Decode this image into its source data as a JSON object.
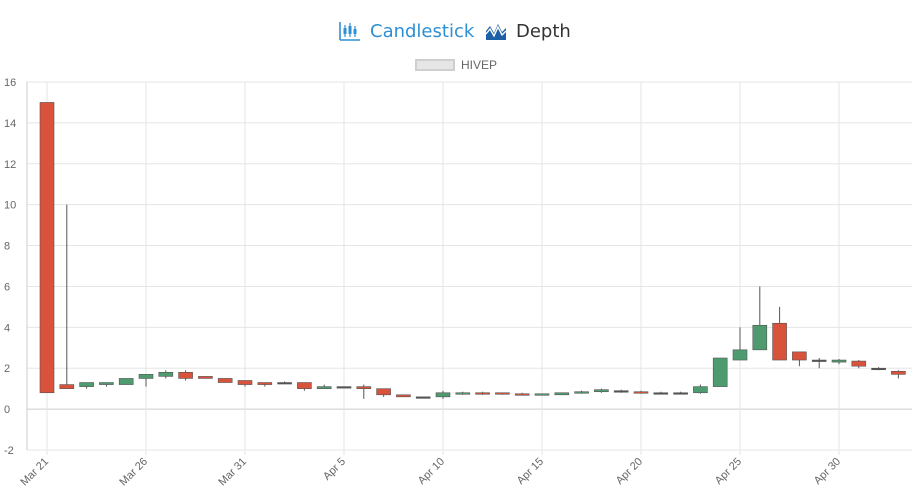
{
  "tabs": [
    {
      "label": "Candlestick",
      "icon": "candlestick-chart-icon",
      "active": true,
      "color": "#2e8fd3"
    },
    {
      "label": "Depth",
      "icon": "depth-chart-icon",
      "active": false,
      "color": "#1d5fa6"
    }
  ],
  "chart_data": {
    "type": "candlestick",
    "legend": {
      "label": "HIVEP",
      "placement": "top-center"
    },
    "ylim": [
      -2,
      16
    ],
    "yticks": [
      -2,
      0,
      2,
      4,
      6,
      8,
      10,
      12,
      14,
      16
    ],
    "xlim": [
      "Mar 21",
      "May 3"
    ],
    "xticks": [
      "Mar 21",
      "Mar 26",
      "Mar 31",
      "Apr 5",
      "Apr 10",
      "Apr 15",
      "Apr 20",
      "Apr 25",
      "Apr 30"
    ],
    "grid": true,
    "colors": {
      "up": "#4e9b6f",
      "down": "#d9523b",
      "neutral": "#555555",
      "grid": "#e5e5e5",
      "axis": "#cccccc"
    },
    "series": [
      {
        "date": "Mar 21",
        "open": 15.0,
        "high": 15.0,
        "low": 0.8,
        "close": 0.8
      },
      {
        "date": "Mar 22",
        "open": 1.2,
        "high": 10.0,
        "low": 1.0,
        "close": 1.0
      },
      {
        "date": "Mar 23",
        "open": 1.1,
        "high": 1.3,
        "low": 1.0,
        "close": 1.3
      },
      {
        "date": "Mar 24",
        "open": 1.2,
        "high": 1.3,
        "low": 1.1,
        "close": 1.3
      },
      {
        "date": "Mar 25",
        "open": 1.2,
        "high": 1.5,
        "low": 1.2,
        "close": 1.5
      },
      {
        "date": "Mar 26",
        "open": 1.5,
        "high": 1.7,
        "low": 1.1,
        "close": 1.7
      },
      {
        "date": "Mar 27",
        "open": 1.6,
        "high": 1.9,
        "low": 1.5,
        "close": 1.8
      },
      {
        "date": "Mar 28",
        "open": 1.8,
        "high": 1.9,
        "low": 1.4,
        "close": 1.5
      },
      {
        "date": "Mar 29",
        "open": 1.6,
        "high": 1.6,
        "low": 1.5,
        "close": 1.5
      },
      {
        "date": "Mar 30",
        "open": 1.5,
        "high": 1.5,
        "low": 1.3,
        "close": 1.3
      },
      {
        "date": "Mar 31",
        "open": 1.4,
        "high": 1.4,
        "low": 1.1,
        "close": 1.2
      },
      {
        "date": "Apr 1",
        "open": 1.3,
        "high": 1.3,
        "low": 1.1,
        "close": 1.2
      },
      {
        "date": "Apr 2",
        "open": 1.3,
        "high": 1.35,
        "low": 1.25,
        "close": 1.3
      },
      {
        "date": "Apr 3",
        "open": 1.3,
        "high": 1.3,
        "low": 0.9,
        "close": 1.0
      },
      {
        "date": "Apr 4",
        "open": 1.0,
        "high": 1.2,
        "low": 1.0,
        "close": 1.1
      },
      {
        "date": "Apr 5",
        "open": 1.1,
        "high": 1.1,
        "low": 1.05,
        "close": 1.1
      },
      {
        "date": "Apr 6",
        "open": 1.1,
        "high": 1.2,
        "low": 0.5,
        "close": 1.0
      },
      {
        "date": "Apr 7",
        "open": 1.0,
        "high": 1.0,
        "low": 0.6,
        "close": 0.7
      },
      {
        "date": "Apr 8",
        "open": 0.7,
        "high": 0.7,
        "low": 0.6,
        "close": 0.6
      },
      {
        "date": "Apr 9",
        "open": 0.6,
        "high": 0.6,
        "low": 0.55,
        "close": 0.6
      },
      {
        "date": "Apr 10",
        "open": 0.6,
        "high": 0.9,
        "low": 0.5,
        "close": 0.8
      },
      {
        "date": "Apr 11",
        "open": 0.75,
        "high": 0.85,
        "low": 0.7,
        "close": 0.8
      },
      {
        "date": "Apr 12",
        "open": 0.8,
        "high": 0.85,
        "low": 0.7,
        "close": 0.75
      },
      {
        "date": "Apr 13",
        "open": 0.8,
        "high": 0.8,
        "low": 0.7,
        "close": 0.75
      },
      {
        "date": "Apr 14",
        "open": 0.75,
        "high": 0.8,
        "low": 0.7,
        "close": 0.7
      },
      {
        "date": "Apr 15",
        "open": 0.7,
        "high": 0.75,
        "low": 0.7,
        "close": 0.75
      },
      {
        "date": "Apr 16",
        "open": 0.7,
        "high": 0.8,
        "low": 0.7,
        "close": 0.8
      },
      {
        "date": "Apr 17",
        "open": 0.8,
        "high": 0.9,
        "low": 0.75,
        "close": 0.85
      },
      {
        "date": "Apr 18",
        "open": 0.85,
        "high": 1.0,
        "low": 0.8,
        "close": 0.95
      },
      {
        "date": "Apr 19",
        "open": 0.9,
        "high": 0.95,
        "low": 0.8,
        "close": 0.9
      },
      {
        "date": "Apr 20",
        "open": 0.85,
        "high": 0.9,
        "low": 0.75,
        "close": 0.8
      },
      {
        "date": "Apr 21",
        "open": 0.8,
        "high": 0.85,
        "low": 0.75,
        "close": 0.8
      },
      {
        "date": "Apr 22",
        "open": 0.8,
        "high": 0.85,
        "low": 0.75,
        "close": 0.8
      },
      {
        "date": "Apr 23",
        "open": 0.8,
        "high": 1.2,
        "low": 0.75,
        "close": 1.1
      },
      {
        "date": "Apr 24",
        "open": 1.1,
        "high": 2.5,
        "low": 1.1,
        "close": 2.5
      },
      {
        "date": "Apr 25",
        "open": 2.4,
        "high": 4.0,
        "low": 2.4,
        "close": 2.9
      },
      {
        "date": "Apr 26",
        "open": 2.9,
        "high": 6.0,
        "low": 2.9,
        "close": 4.1
      },
      {
        "date": "Apr 27",
        "open": 4.2,
        "high": 5.0,
        "low": 2.4,
        "close": 2.4
      },
      {
        "date": "Apr 28",
        "open": 2.8,
        "high": 2.8,
        "low": 2.1,
        "close": 2.4
      },
      {
        "date": "Apr 29",
        "open": 2.4,
        "high": 2.5,
        "low": 2.0,
        "close": 2.4
      },
      {
        "date": "Apr 30",
        "open": 2.3,
        "high": 2.45,
        "low": 2.2,
        "close": 2.4
      },
      {
        "date": "May 1",
        "open": 2.35,
        "high": 2.4,
        "low": 2.0,
        "close": 2.1
      },
      {
        "date": "May 2",
        "open": 2.0,
        "high": 2.05,
        "low": 1.9,
        "close": 2.0
      },
      {
        "date": "May 3",
        "open": 1.85,
        "high": 1.9,
        "low": 1.5,
        "close": 1.7
      }
    ]
  }
}
